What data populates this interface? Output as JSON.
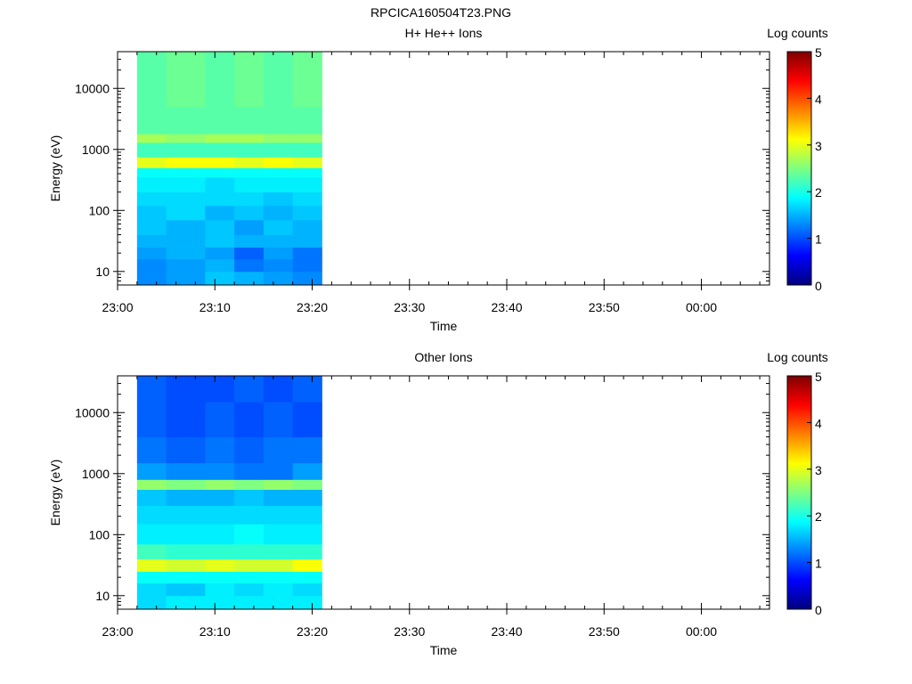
{
  "page_title": "RPCICA160504T23.PNG",
  "chart_data": [
    {
      "type": "heatmap",
      "title": "H+ He++ Ions",
      "xlabel": "Time",
      "ylabel": "Energy (eV)",
      "x_ticks": [
        "23:00",
        "23:10",
        "23:20",
        "23:30",
        "23:40",
        "23:50",
        "00:00"
      ],
      "x_range": [
        "23:00",
        "00:07"
      ],
      "y_scale": "log",
      "y_ticks": [
        10,
        100,
        1000,
        10000
      ],
      "y_tick_labels": [
        "10",
        "100",
        "1000",
        "10000"
      ],
      "y_range": [
        6,
        40000
      ],
      "colorbar": {
        "label": "Log counts",
        "range": [
          0,
          5
        ],
        "ticks": [
          "0",
          "1",
          "2",
          "3",
          "4",
          "5"
        ],
        "colormap": "jet"
      },
      "time_columns": [
        "23:02",
        "23:05",
        "23:09",
        "23:12",
        "23:15",
        "23:18"
      ],
      "data_end_time": "23:21",
      "energy_bands": [
        {
          "energy_range_eV": [
            6,
            10
          ],
          "log_counts": [
            1.3,
            1.4,
            1.6,
            1.5,
            1.4,
            1.3
          ]
        },
        {
          "energy_range_eV": [
            10,
            16
          ],
          "log_counts": [
            1.3,
            1.4,
            1.5,
            1.2,
            1.3,
            1.2
          ]
        },
        {
          "energy_range_eV": [
            16,
            25
          ],
          "log_counts": [
            1.4,
            1.5,
            1.4,
            1.1,
            1.4,
            1.2
          ]
        },
        {
          "energy_range_eV": [
            25,
            40
          ],
          "log_counts": [
            1.5,
            1.5,
            1.6,
            1.5,
            1.5,
            1.5
          ]
        },
        {
          "energy_range_eV": [
            40,
            70
          ],
          "log_counts": [
            1.6,
            1.5,
            1.6,
            1.4,
            1.6,
            1.5
          ]
        },
        {
          "energy_range_eV": [
            70,
            120
          ],
          "log_counts": [
            1.6,
            1.7,
            1.5,
            1.6,
            1.5,
            1.6
          ]
        },
        {
          "energy_range_eV": [
            120,
            200
          ],
          "log_counts": [
            1.7,
            1.7,
            1.7,
            1.7,
            1.6,
            1.7
          ]
        },
        {
          "energy_range_eV": [
            200,
            350
          ],
          "log_counts": [
            1.8,
            1.8,
            1.7,
            1.8,
            1.8,
            1.8
          ]
        },
        {
          "energy_range_eV": [
            350,
            500
          ],
          "log_counts": [
            1.9,
            1.9,
            1.9,
            1.9,
            1.9,
            1.9
          ]
        },
        {
          "energy_range_eV": [
            500,
            750
          ],
          "log_counts": [
            3.0,
            3.1,
            3.1,
            3.0,
            3.1,
            3.0
          ]
        },
        {
          "energy_range_eV": [
            750,
            1300
          ],
          "log_counts": [
            2.2,
            2.2,
            2.2,
            2.2,
            2.2,
            2.2
          ]
        },
        {
          "energy_range_eV": [
            1300,
            1800
          ],
          "log_counts": [
            2.7,
            2.6,
            2.7,
            2.7,
            2.6,
            2.6
          ]
        },
        {
          "energy_range_eV": [
            1800,
            5000
          ],
          "log_counts": [
            2.3,
            2.3,
            2.3,
            2.3,
            2.3,
            2.3
          ]
        },
        {
          "energy_range_eV": [
            5000,
            40000
          ],
          "log_counts": [
            2.3,
            2.4,
            2.3,
            2.4,
            2.3,
            2.4
          ]
        }
      ]
    },
    {
      "type": "heatmap",
      "title": "Other Ions",
      "xlabel": "Time",
      "ylabel": "Energy (eV)",
      "x_ticks": [
        "23:00",
        "23:10",
        "23:20",
        "23:30",
        "23:40",
        "23:50",
        "00:00"
      ],
      "x_range": [
        "23:00",
        "00:07"
      ],
      "y_scale": "log",
      "y_ticks": [
        10,
        100,
        1000,
        10000
      ],
      "y_tick_labels": [
        "10",
        "100",
        "1000",
        "10000"
      ],
      "y_range": [
        6,
        40000
      ],
      "colorbar": {
        "label": "Log counts",
        "range": [
          0,
          5
        ],
        "ticks": [
          "0",
          "1",
          "2",
          "3",
          "4",
          "5"
        ],
        "colormap": "jet"
      },
      "time_columns": [
        "23:02",
        "23:05",
        "23:09",
        "23:12",
        "23:15",
        "23:18"
      ],
      "data_end_time": "23:21",
      "energy_bands": [
        {
          "energy_range_eV": [
            6,
            10
          ],
          "log_counts": [
            1.7,
            1.8,
            1.8,
            1.8,
            1.8,
            1.8
          ]
        },
        {
          "energy_range_eV": [
            10,
            16
          ],
          "log_counts": [
            1.7,
            1.6,
            1.8,
            1.7,
            1.8,
            1.7
          ]
        },
        {
          "energy_range_eV": [
            16,
            25
          ],
          "log_counts": [
            1.9,
            1.9,
            1.9,
            1.9,
            1.9,
            1.9
          ]
        },
        {
          "energy_range_eV": [
            25,
            40
          ],
          "log_counts": [
            3.0,
            2.9,
            3.0,
            2.9,
            2.9,
            3.1
          ]
        },
        {
          "energy_range_eV": [
            40,
            70
          ],
          "log_counts": [
            2.2,
            2.1,
            2.1,
            2.1,
            2.1,
            2.1
          ]
        },
        {
          "energy_range_eV": [
            70,
            150
          ],
          "log_counts": [
            1.8,
            1.8,
            1.8,
            1.9,
            1.8,
            1.8
          ]
        },
        {
          "energy_range_eV": [
            150,
            300
          ],
          "log_counts": [
            1.7,
            1.7,
            1.7,
            1.7,
            1.7,
            1.7
          ]
        },
        {
          "energy_range_eV": [
            300,
            550
          ],
          "log_counts": [
            1.6,
            1.5,
            1.5,
            1.6,
            1.5,
            1.5
          ]
        },
        {
          "energy_range_eV": [
            550,
            800
          ],
          "log_counts": [
            2.6,
            2.5,
            2.6,
            2.5,
            2.6,
            2.5
          ]
        },
        {
          "energy_range_eV": [
            800,
            1500
          ],
          "log_counts": [
            1.4,
            1.3,
            1.3,
            1.2,
            1.2,
            1.4
          ]
        },
        {
          "energy_range_eV": [
            1500,
            4000
          ],
          "log_counts": [
            1.2,
            1.1,
            1.2,
            1.1,
            1.2,
            1.2
          ]
        },
        {
          "energy_range_eV": [
            4000,
            15000
          ],
          "log_counts": [
            1.1,
            1.0,
            1.1,
            1.0,
            1.1,
            1.0
          ]
        },
        {
          "energy_range_eV": [
            15000,
            40000
          ],
          "log_counts": [
            1.1,
            1.0,
            1.0,
            1.1,
            1.0,
            1.1
          ]
        }
      ]
    }
  ]
}
